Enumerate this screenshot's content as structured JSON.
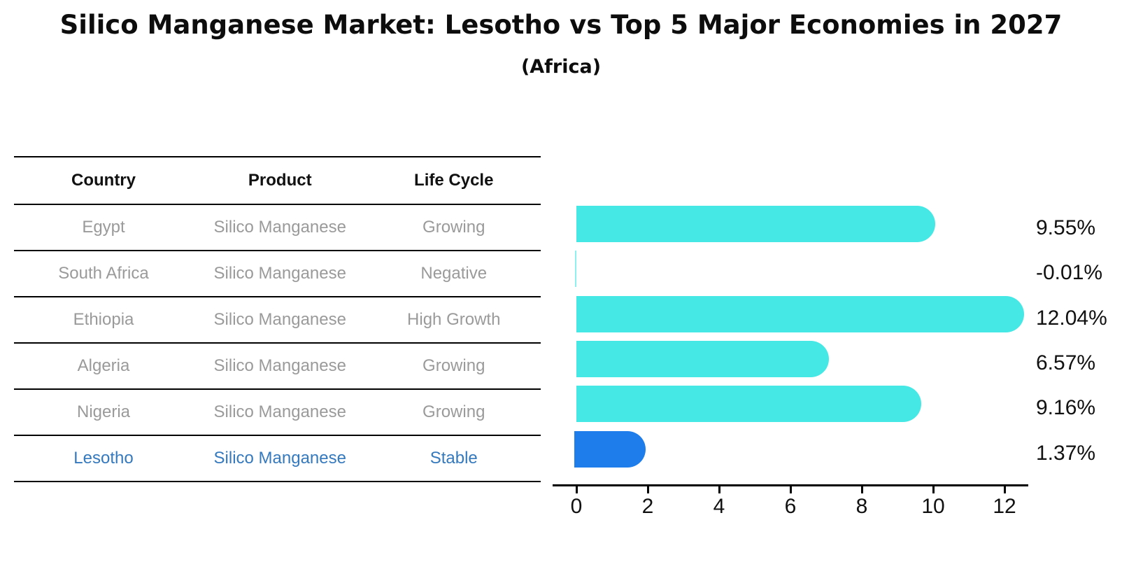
{
  "title": "Silico Manganese Market: Lesotho vs Top 5 Major Economies in 2027",
  "subtitle": "(Africa)",
  "table": {
    "headers": [
      "Country",
      "Product",
      "Life Cycle"
    ],
    "rows": [
      {
        "country": "Egypt",
        "product": "Silico Manganese",
        "life_cycle": "Growing",
        "highlight": false
      },
      {
        "country": "South Africa",
        "product": "Silico Manganese",
        "life_cycle": "Negative",
        "highlight": false
      },
      {
        "country": "Ethiopia",
        "product": "Silico Manganese",
        "life_cycle": "High Growth",
        "highlight": false
      },
      {
        "country": "Algeria",
        "product": "Silico Manganese",
        "life_cycle": "Growing",
        "highlight": false
      },
      {
        "country": "Nigeria",
        "product": "Silico Manganese",
        "life_cycle": "Growing",
        "highlight": false
      },
      {
        "country": "Lesotho",
        "product": "Silico Manganese",
        "life_cycle": "Stable",
        "highlight": true
      }
    ]
  },
  "chart_data": {
    "type": "bar",
    "orientation": "horizontal",
    "title": "Silico Manganese Market: Lesotho vs Top 5 Major Economies in 2027 (Africa)",
    "categories": [
      "Egypt",
      "South Africa",
      "Ethiopia",
      "Algeria",
      "Nigeria",
      "Lesotho"
    ],
    "values": [
      9.55,
      -0.01,
      12.04,
      6.57,
      9.16,
      1.37
    ],
    "value_labels": [
      "9.55%",
      "-0.01%",
      "12.04%",
      "6.57%",
      "9.16%",
      "1.37%"
    ],
    "x_ticks": [
      0,
      2,
      4,
      6,
      8,
      10,
      12
    ],
    "xlim": [
      0,
      12.7
    ],
    "grid": false,
    "legend": null,
    "highlight_index": 5,
    "bar_color": "#45E8E4",
    "highlight_color": "#1E7DEB"
  },
  "colors": {
    "text_primary": "#111111",
    "text_muted": "#9a9a9a",
    "highlight_text": "#3579BE",
    "axis": "#000000"
  }
}
